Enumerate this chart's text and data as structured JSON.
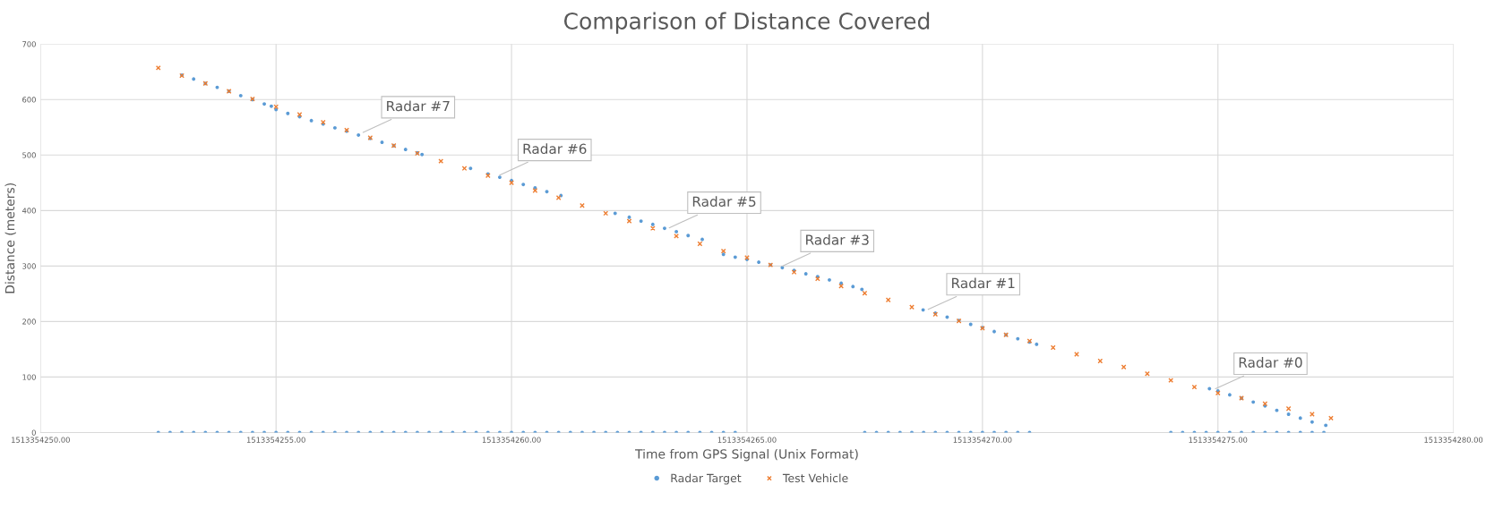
{
  "chart_data": {
    "type": "scatter",
    "title": "Comparison of Distance Covered",
    "xlabel": "Time from GPS Signal (Unix Format)",
    "ylabel": "Distance (meters)",
    "xlim": [
      1513354250,
      1513354280
    ],
    "xticks": [
      {
        "value": 1513354250,
        "label": "1513354250.00"
      },
      {
        "value": 1513354255,
        "label": "1513354255.00"
      },
      {
        "value": 1513354260,
        "label": "1513354260.00"
      },
      {
        "value": 1513354265,
        "label": "1513354265.00"
      },
      {
        "value": 1513354270,
        "label": "1513354270.00"
      },
      {
        "value": 1513354275,
        "label": "1513354275.00"
      },
      {
        "value": 1513354280,
        "label": "1513354280.00"
      }
    ],
    "ylim": [
      0,
      700
    ],
    "yticks": [
      0,
      100,
      200,
      300,
      400,
      500,
      600,
      700
    ],
    "grid": true,
    "legend": "bottom",
    "series": [
      {
        "name": "Radar Target",
        "color": "#5b9bd5",
        "marker": "circle",
        "x": [
          1513354253.0,
          1513354253.25,
          1513354253.5,
          1513354253.75,
          1513354254.0,
          1513354254.25,
          1513354254.5,
          1513354254.75,
          1513354254.9,
          1513354255.0,
          1513354255.25,
          1513354255.5,
          1513354255.75,
          1513354256.0,
          1513354256.25,
          1513354256.5,
          1513354256.75,
          1513354257.0,
          1513354257.25,
          1513354257.5,
          1513354257.75,
          1513354258.0,
          1513354258.1,
          1513354259.13,
          1513354259.5,
          1513354259.75,
          1513354260.0,
          1513354260.25,
          1513354260.5,
          1513354260.75,
          1513354261.05,
          1513354262.2,
          1513354262.5,
          1513354262.75,
          1513354263.0,
          1513354263.25,
          1513354263.5,
          1513354263.75,
          1513354264.05,
          1513354264.5,
          1513354264.75,
          1513354265.0,
          1513354265.25,
          1513354265.5,
          1513354265.75,
          1513354266.0,
          1513354266.25,
          1513354266.5,
          1513354266.75,
          1513354267.0,
          1513354267.25,
          1513354267.44,
          1513354268.74,
          1513354269.0,
          1513354269.25,
          1513354269.5,
          1513354269.75,
          1513354270.0,
          1513354270.25,
          1513354270.5,
          1513354270.75,
          1513354271.0,
          1513354271.15,
          1513354274.82,
          1513354275.0,
          1513354275.25,
          1513354275.5,
          1513354275.75,
          1513354276.0,
          1513354276.25,
          1513354276.5,
          1513354276.75,
          1513354277.0,
          1513354277.29,
          1513354252.5,
          1513354252.75,
          1513354253.0,
          1513354253.25,
          1513354253.5,
          1513354253.75,
          1513354254.0,
          1513354254.25,
          1513354254.5,
          1513354254.75,
          1513354255.0,
          1513354255.25,
          1513354255.5,
          1513354255.75,
          1513354256.0,
          1513354256.25,
          1513354256.5,
          1513354256.75,
          1513354257.0,
          1513354257.25,
          1513354257.5,
          1513354257.75,
          1513354258.0,
          1513354258.25,
          1513354258.5,
          1513354258.75,
          1513354259.0,
          1513354259.25,
          1513354259.5,
          1513354259.75,
          1513354260.0,
          1513354260.25,
          1513354260.5,
          1513354260.75,
          1513354261.0,
          1513354261.25,
          1513354261.5,
          1513354261.75,
          1513354262.0,
          1513354262.25,
          1513354262.5,
          1513354262.75,
          1513354263.0,
          1513354263.25,
          1513354263.5,
          1513354263.75,
          1513354264.0,
          1513354264.25,
          1513354264.5,
          1513354264.75,
          1513354267.5,
          1513354267.75,
          1513354268.0,
          1513354268.25,
          1513354268.5,
          1513354268.75,
          1513354269.0,
          1513354269.25,
          1513354269.5,
          1513354269.75,
          1513354270.0,
          1513354270.25,
          1513354270.5,
          1513354270.75,
          1513354271.0,
          1513354274.0,
          1513354274.25,
          1513354274.5,
          1513354274.75,
          1513354275.0,
          1513354275.25,
          1513354275.5,
          1513354275.75,
          1513354276.0,
          1513354276.25,
          1513354276.5,
          1513354276.75,
          1513354277.0,
          1513354277.25
        ],
        "values": [
          644,
          637,
          629,
          622,
          615,
          607,
          600,
          592,
          588,
          582,
          575,
          569,
          562,
          556,
          549,
          543,
          536,
          530,
          523,
          517,
          510,
          504,
          501,
          476,
          466,
          460,
          454,
          447,
          441,
          434,
          427,
          395,
          388,
          381,
          375,
          368,
          362,
          355,
          348,
          321,
          316,
          312,
          307,
          302,
          297,
          292,
          286,
          281,
          275,
          269,
          263,
          258,
          221,
          215,
          208,
          202,
          195,
          189,
          182,
          176,
          169,
          163,
          159,
          79,
          75,
          68,
          62,
          55,
          48,
          40,
          33,
          26,
          19,
          13,
          0,
          0,
          0,
          0,
          0,
          0,
          0,
          0,
          0,
          0,
          0,
          0,
          0,
          0,
          0,
          0,
          0,
          0,
          0,
          0,
          0,
          0,
          0,
          0,
          0,
          0,
          0,
          0,
          0,
          0,
          0,
          0,
          0,
          0,
          0,
          0,
          0,
          0,
          0,
          0,
          0,
          0,
          0,
          0,
          0,
          0,
          0,
          0,
          0,
          0,
          0,
          0,
          0,
          0,
          0,
          0,
          0,
          0,
          0,
          0,
          0,
          0,
          0,
          0,
          0,
          0,
          0,
          0,
          0,
          0,
          0,
          0,
          0,
          0,
          0,
          0,
          0,
          0,
          0
        ]
      },
      {
        "name": "Test Vehicle",
        "color": "#ed7d31",
        "marker": "cross",
        "x": [
          1513354252.5,
          1513354253.0,
          1513354253.5,
          1513354254.0,
          1513354254.5,
          1513354255.0,
          1513354255.5,
          1513354256.0,
          1513354256.5,
          1513354257.0,
          1513354257.5,
          1513354258.0,
          1513354258.5,
          1513354259.0,
          1513354259.5,
          1513354260.0,
          1513354260.5,
          1513354261.0,
          1513354261.5,
          1513354262.0,
          1513354262.5,
          1513354263.0,
          1513354263.5,
          1513354264.0,
          1513354264.5,
          1513354265.0,
          1513354265.5,
          1513354266.0,
          1513354266.5,
          1513354267.0,
          1513354267.5,
          1513354268.0,
          1513354268.5,
          1513354269.0,
          1513354269.5,
          1513354270.0,
          1513354270.5,
          1513354271.0,
          1513354271.5,
          1513354272.0,
          1513354272.5,
          1513354273.0,
          1513354273.5,
          1513354274.0,
          1513354274.5,
          1513354275.0,
          1513354275.5,
          1513354276.0,
          1513354276.5,
          1513354277.0,
          1513354277.4
        ],
        "values": [
          657,
          643,
          629,
          615,
          601,
          587,
          573,
          559,
          545,
          531,
          517,
          503,
          489,
          476,
          463,
          450,
          436,
          423,
          409,
          395,
          381,
          368,
          354,
          340,
          327,
          315,
          302,
          289,
          277,
          264,
          251,
          239,
          226,
          213,
          201,
          188,
          176,
          165,
          153,
          141,
          129,
          118,
          106,
          94,
          82,
          71,
          62,
          52,
          43,
          33,
          26
        ]
      }
    ],
    "annotations": [
      {
        "text": "Radar #7",
        "x": 1513354256.8,
        "y": 539
      },
      {
        "text": "Radar #6",
        "x": 1513354259.7,
        "y": 462
      },
      {
        "text": "Radar #5",
        "x": 1513354263.3,
        "y": 367
      },
      {
        "text": "Radar #3",
        "x": 1513354265.7,
        "y": 298
      },
      {
        "text": "Radar #1",
        "x": 1513354268.8,
        "y": 220
      },
      {
        "text": "Radar #0",
        "x": 1513354274.9,
        "y": 77
      }
    ]
  }
}
